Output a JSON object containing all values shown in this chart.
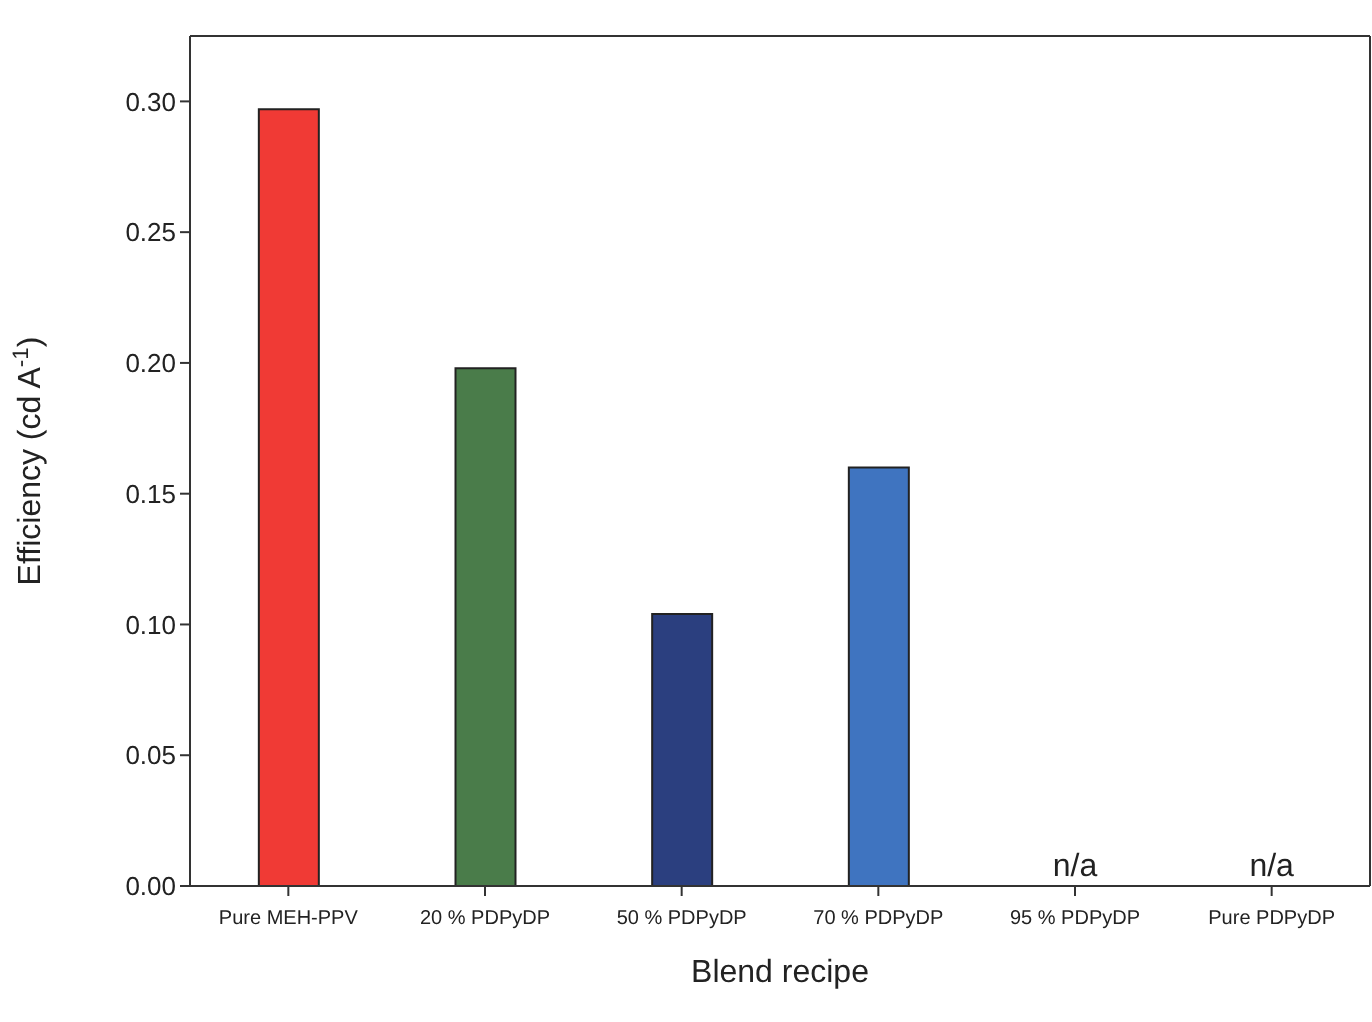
{
  "chart_data": {
    "type": "bar",
    "xlabel": "Blend recipe",
    "ylabel": "Efficiency (cd A$^{-1}$)",
    "categories": [
      "Pure MEH-PPV",
      "20 % PDPyDP",
      "50 % PDPyDP",
      "70 % PDPyDP",
      "95 % PDPyDP",
      "Pure PDPyDP"
    ],
    "values": [
      0.297,
      0.198,
      0.104,
      0.16,
      null,
      null
    ],
    "value_labels": [
      null,
      null,
      null,
      null,
      "n/a",
      "n/a"
    ],
    "colors": [
      "#f03a35",
      "#4a7c4a",
      "#2b3f7f",
      "#3f74c0",
      "#888888",
      "#888888"
    ],
    "ylim": [
      0,
      0.325
    ],
    "yticks": [
      {
        "value": 0,
        "label": "0.00"
      },
      {
        "value": 0.05,
        "label": "0.05"
      },
      {
        "value": 0.1,
        "label": "0.10"
      },
      {
        "value": 0.15,
        "label": "0.15"
      },
      {
        "value": 0.2,
        "label": "0.20"
      },
      {
        "value": 0.25,
        "label": "0.25"
      },
      {
        "value": 0.3,
        "label": "0.30"
      }
    ],
    "grid": false,
    "legend": false
  }
}
